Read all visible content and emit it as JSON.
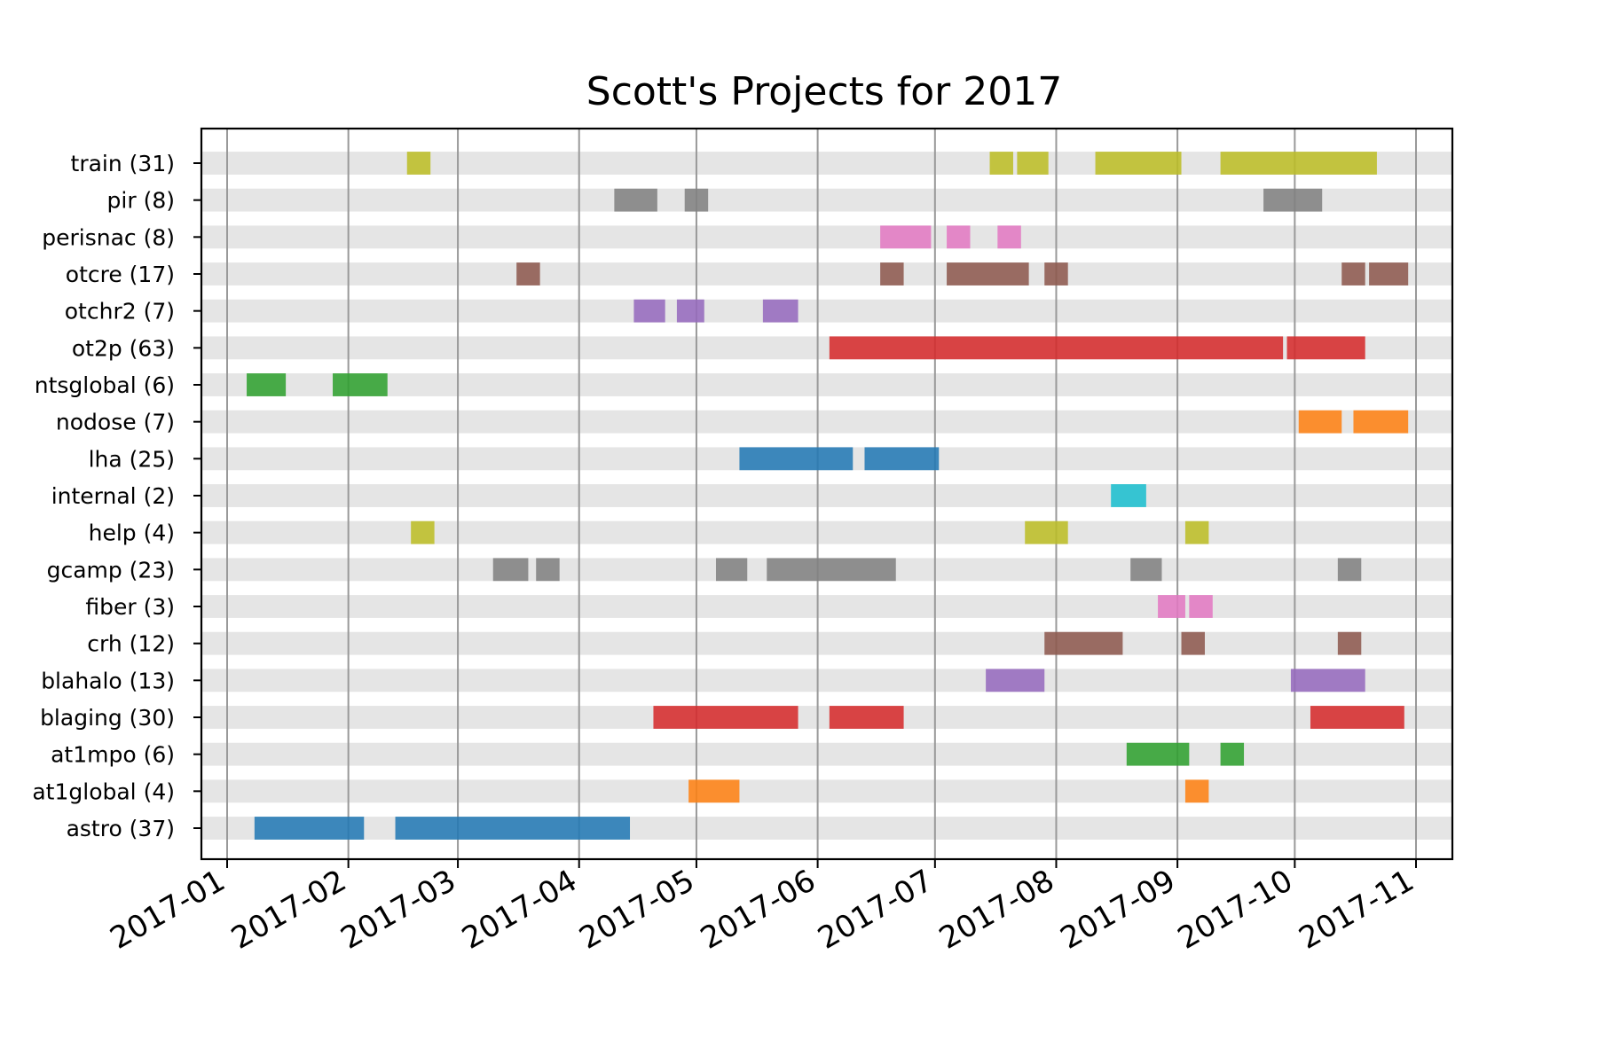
{
  "chart_data": {
    "type": "timeline",
    "title": "Scott's Projects for 2017",
    "xlabel": "",
    "ylabel": "",
    "x_ticks": [
      "2017-01",
      "2017-02",
      "2017-03",
      "2017-04",
      "2017-05",
      "2017-06",
      "2017-07",
      "2017-08",
      "2017-09",
      "2017-10",
      "2017-11"
    ],
    "grid": "vertical at monthly ticks",
    "rows": [
      {
        "label": "train (31)",
        "color": "#bcbd22",
        "segments": [
          [
            "2017-02-16",
            "2017-02-22"
          ],
          [
            "2017-07-15",
            "2017-07-21"
          ],
          [
            "2017-07-22",
            "2017-07-30"
          ],
          [
            "2017-08-11",
            "2017-09-02"
          ],
          [
            "2017-09-12",
            "2017-10-22"
          ]
        ]
      },
      {
        "label": "pir (8)",
        "color": "#7f7f7f",
        "segments": [
          [
            "2017-04-10",
            "2017-04-21"
          ],
          [
            "2017-04-28",
            "2017-05-04"
          ],
          [
            "2017-09-23",
            "2017-10-08"
          ]
        ]
      },
      {
        "label": "perisnac (8)",
        "color": "#e377c2",
        "segments": [
          [
            "2017-06-17",
            "2017-06-30"
          ],
          [
            "2017-07-04",
            "2017-07-10"
          ],
          [
            "2017-07-17",
            "2017-07-23"
          ]
        ]
      },
      {
        "label": "otcre (17)",
        "color": "#8c564b",
        "segments": [
          [
            "2017-03-16",
            "2017-03-22"
          ],
          [
            "2017-06-17",
            "2017-06-23"
          ],
          [
            "2017-07-04",
            "2017-07-25"
          ],
          [
            "2017-07-29",
            "2017-08-04"
          ],
          [
            "2017-10-13",
            "2017-10-19"
          ],
          [
            "2017-10-20",
            "2017-10-30"
          ]
        ]
      },
      {
        "label": "otchr2 (7)",
        "color": "#9467bd",
        "segments": [
          [
            "2017-04-15",
            "2017-04-23"
          ],
          [
            "2017-04-26",
            "2017-05-03"
          ],
          [
            "2017-05-18",
            "2017-05-27"
          ]
        ]
      },
      {
        "label": "ot2p (63)",
        "color": "#d62728",
        "segments": [
          [
            "2017-06-04",
            "2017-09-28"
          ],
          [
            "2017-09-29",
            "2017-10-19"
          ]
        ]
      },
      {
        "label": "ntsglobal (6)",
        "color": "#2ca02c",
        "segments": [
          [
            "2017-01-06",
            "2017-01-16"
          ],
          [
            "2017-01-28",
            "2017-02-11"
          ]
        ]
      },
      {
        "label": "nodose (7)",
        "color": "#ff7f0e",
        "segments": [
          [
            "2017-10-02",
            "2017-10-13"
          ],
          [
            "2017-10-16",
            "2017-10-30"
          ]
        ]
      },
      {
        "label": "lha (25)",
        "color": "#1f77b4",
        "segments": [
          [
            "2017-05-12",
            "2017-06-10"
          ],
          [
            "2017-06-13",
            "2017-07-02"
          ]
        ]
      },
      {
        "label": "internal (2)",
        "color": "#17becf",
        "segments": [
          [
            "2017-08-15",
            "2017-08-24"
          ]
        ]
      },
      {
        "label": "help (4)",
        "color": "#bcbd22",
        "segments": [
          [
            "2017-02-17",
            "2017-02-23"
          ],
          [
            "2017-07-24",
            "2017-08-04"
          ],
          [
            "2017-09-03",
            "2017-09-09"
          ]
        ]
      },
      {
        "label": "gcamp (23)",
        "color": "#7f7f7f",
        "segments": [
          [
            "2017-03-10",
            "2017-03-19"
          ],
          [
            "2017-03-21",
            "2017-03-27"
          ],
          [
            "2017-05-06",
            "2017-05-14"
          ],
          [
            "2017-05-19",
            "2017-06-21"
          ],
          [
            "2017-08-20",
            "2017-08-28"
          ],
          [
            "2017-10-12",
            "2017-10-18"
          ]
        ]
      },
      {
        "label": "fiber (3)",
        "color": "#e377c2",
        "segments": [
          [
            "2017-08-27",
            "2017-09-03"
          ],
          [
            "2017-09-04",
            "2017-09-10"
          ]
        ]
      },
      {
        "label": "crh (12)",
        "color": "#8c564b",
        "segments": [
          [
            "2017-07-29",
            "2017-08-18"
          ],
          [
            "2017-09-02",
            "2017-09-08"
          ],
          [
            "2017-10-12",
            "2017-10-18"
          ]
        ]
      },
      {
        "label": "blahalo (13)",
        "color": "#9467bd",
        "segments": [
          [
            "2017-07-14",
            "2017-07-29"
          ],
          [
            "2017-09-30",
            "2017-10-19"
          ]
        ]
      },
      {
        "label": "blaging (30)",
        "color": "#d62728",
        "segments": [
          [
            "2017-04-20",
            "2017-05-27"
          ],
          [
            "2017-06-04",
            "2017-06-23"
          ],
          [
            "2017-10-05",
            "2017-10-29"
          ]
        ]
      },
      {
        "label": "at1mpo (6)",
        "color": "#2ca02c",
        "segments": [
          [
            "2017-08-19",
            "2017-09-04"
          ],
          [
            "2017-09-12",
            "2017-09-18"
          ]
        ]
      },
      {
        "label": "at1global (4)",
        "color": "#ff7f0e",
        "segments": [
          [
            "2017-04-29",
            "2017-05-12"
          ],
          [
            "2017-09-03",
            "2017-09-09"
          ]
        ]
      },
      {
        "label": "astro (37)",
        "color": "#1f77b4",
        "segments": [
          [
            "2017-01-08",
            "2017-02-05"
          ],
          [
            "2017-02-13",
            "2017-04-14"
          ]
        ]
      }
    ]
  }
}
